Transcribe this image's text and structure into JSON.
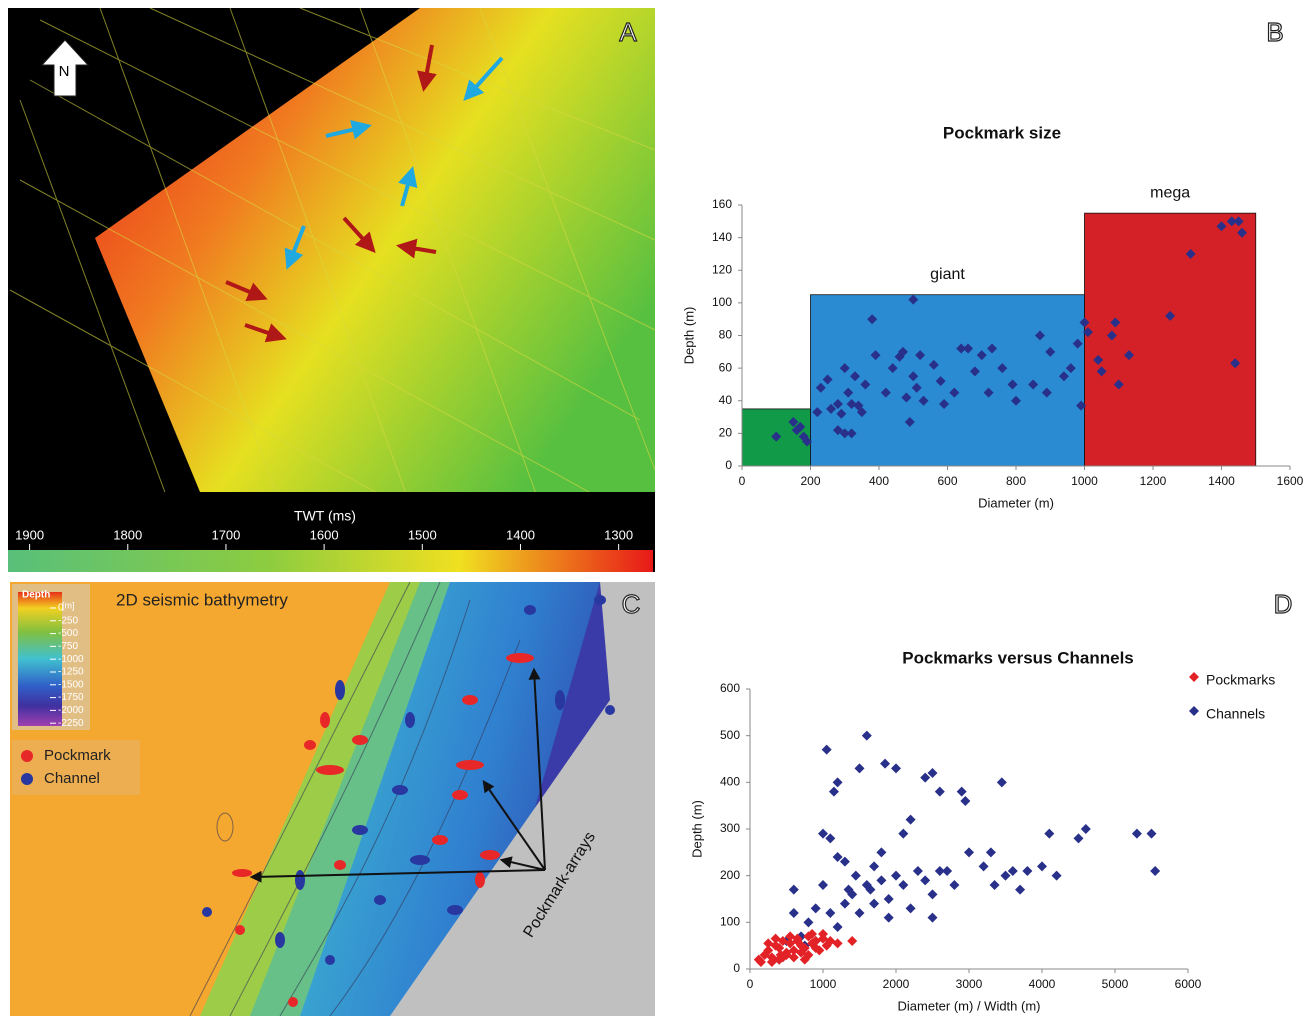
{
  "panel_labels": [
    "A",
    "B",
    "C",
    "D"
  ],
  "map_a": {
    "north": "N",
    "colorbar_title": "TWT (ms)",
    "lim": [
      1922,
      1265
    ],
    "ticks": [
      1900,
      1800,
      1700,
      1600,
      1500,
      1400,
      1300
    ]
  },
  "map_c": {
    "title": "2D seismic bathymetry",
    "depth_title": "Depth",
    "depth_unit": "[m]",
    "lim": [
      312,
      -2500
    ],
    "ticks": [
      0,
      -250,
      -500,
      -750,
      -1000,
      -1250,
      -1500,
      -1750,
      -2000,
      -2250
    ],
    "legend": [
      "Pockmark",
      "Channel"
    ],
    "annotation": "Pockmark-arrays"
  },
  "chart_data": [
    {
      "type": "scatter",
      "title": "Pockmark size",
      "x_label": "Diameter (m)",
      "y_label": "Depth (m)",
      "xlim": [
        0,
        1600
      ],
      "xticks": [
        0,
        200,
        400,
        600,
        800,
        1000,
        1200,
        1400,
        1600
      ],
      "ylim": [
        0,
        160
      ],
      "yticks": [
        0,
        20,
        40,
        60,
        80,
        100,
        120,
        140,
        160
      ],
      "regions": [
        {
          "x0": 0,
          "x1": 200,
          "y1": 35,
          "color": "#119a48"
        },
        {
          "x0": 200,
          "x1": 1000,
          "y1": 105,
          "color": "#2a8bd2",
          "label": "giant"
        },
        {
          "x0": 1000,
          "x1": 1500,
          "y1": 155,
          "color": "#d42128",
          "label": "mega"
        }
      ],
      "color": "#28308a",
      "x": [
        100,
        150,
        160,
        180,
        190,
        170,
        220,
        230,
        250,
        260,
        280,
        290,
        300,
        310,
        320,
        330,
        340,
        300,
        280,
        320,
        350,
        360,
        380,
        390,
        420,
        440,
        460,
        470,
        480,
        490,
        500,
        500,
        510,
        520,
        530,
        560,
        580,
        590,
        620,
        640,
        660,
        680,
        700,
        720,
        730,
        760,
        790,
        800,
        850,
        870,
        890,
        900,
        940,
        960,
        980,
        990,
        1000,
        1010,
        1040,
        1050,
        1080,
        1090,
        1100,
        1130,
        1250,
        1310,
        1400,
        1430,
        1450,
        1460,
        1440
      ],
      "values": [
        18,
        27,
        22,
        18,
        15,
        24,
        33,
        48,
        53,
        35,
        38,
        32,
        20,
        45,
        38,
        55,
        37,
        60,
        22,
        20,
        33,
        50,
        90,
        68,
        45,
        60,
        67,
        70,
        42,
        27,
        102,
        55,
        48,
        68,
        40,
        62,
        52,
        38,
        45,
        72,
        72,
        58,
        68,
        45,
        72,
        60,
        50,
        40,
        50,
        80,
        45,
        70,
        55,
        60,
        75,
        37,
        88,
        82,
        65,
        58,
        80,
        88,
        50,
        68,
        92,
        130,
        147,
        150,
        150,
        143,
        63
      ]
    },
    {
      "type": "scatter",
      "title": "Pockmarks versus Channels",
      "x_label": "Diameter (m) / Width (m)",
      "y_label": "Depth (m)",
      "xlim": [
        0,
        6000
      ],
      "xticks": [
        0,
        1000,
        2000,
        3000,
        4000,
        5000,
        6000
      ],
      "ylim": [
        0,
        600
      ],
      "yticks": [
        0,
        100,
        200,
        300,
        400,
        500,
        600
      ],
      "legend": "upper right",
      "series": [
        {
          "name": "Channels",
          "color": "#28308a",
          "x": [
            400,
            500,
            600,
            700,
            800,
            900,
            1000,
            1000,
            1050,
            1100,
            1150,
            1200,
            1300,
            1400,
            1450,
            1500,
            1600,
            1650,
            1700,
            1800,
            1850,
            1900,
            2000,
            2000,
            2100,
            2100,
            2200,
            2300,
            2400,
            2500,
            2500,
            2600,
            2700,
            2900,
            2950,
            3000,
            3200,
            3300,
            3350,
            3450,
            3500,
            3600,
            3700,
            3800,
            4000,
            4100,
            4200,
            4500,
            4600,
            5300,
            5500,
            5550,
            1100,
            1200,
            1300,
            1500,
            1600,
            1700,
            1800,
            1900,
            2200,
            2400,
            2500,
            2600,
            600,
            750,
            900,
            1200,
            1350,
            2800
          ],
          "values": [
            20,
            60,
            170,
            70,
            100,
            130,
            290,
            180,
            470,
            280,
            380,
            400,
            230,
            160,
            200,
            430,
            500,
            170,
            220,
            250,
            440,
            150,
            430,
            200,
            180,
            290,
            320,
            210,
            410,
            420,
            160,
            380,
            210,
            380,
            360,
            250,
            220,
            250,
            180,
            400,
            200,
            210,
            170,
            210,
            220,
            290,
            200,
            280,
            300,
            290,
            290,
            210,
            120,
            90,
            140,
            120,
            180,
            140,
            190,
            110,
            130,
            190,
            110,
            210,
            120,
            50,
            60,
            240,
            170,
            180
          ]
        },
        {
          "name": "Pockmarks",
          "color": "#e32228",
          "x": [
            120,
            200,
            250,
            300,
            350,
            400,
            420,
            450,
            500,
            550,
            600,
            650,
            700,
            750,
            800,
            850,
            900,
            950,
            1000,
            1050,
            1100,
            300,
            400,
            500,
            600,
            700,
            800,
            900,
            1000,
            250,
            350,
            450,
            550,
            650,
            750,
            850,
            1400,
            150,
            1200
          ],
          "values": [
            20,
            30,
            40,
            25,
            50,
            45,
            30,
            60,
            35,
            55,
            40,
            65,
            50,
            45,
            70,
            55,
            60,
            40,
            75,
            50,
            60,
            15,
            20,
            30,
            25,
            35,
            30,
            45,
            65,
            55,
            65,
            25,
            70,
            60,
            20,
            75,
            60,
            15,
            55
          ]
        }
      ]
    }
  ]
}
